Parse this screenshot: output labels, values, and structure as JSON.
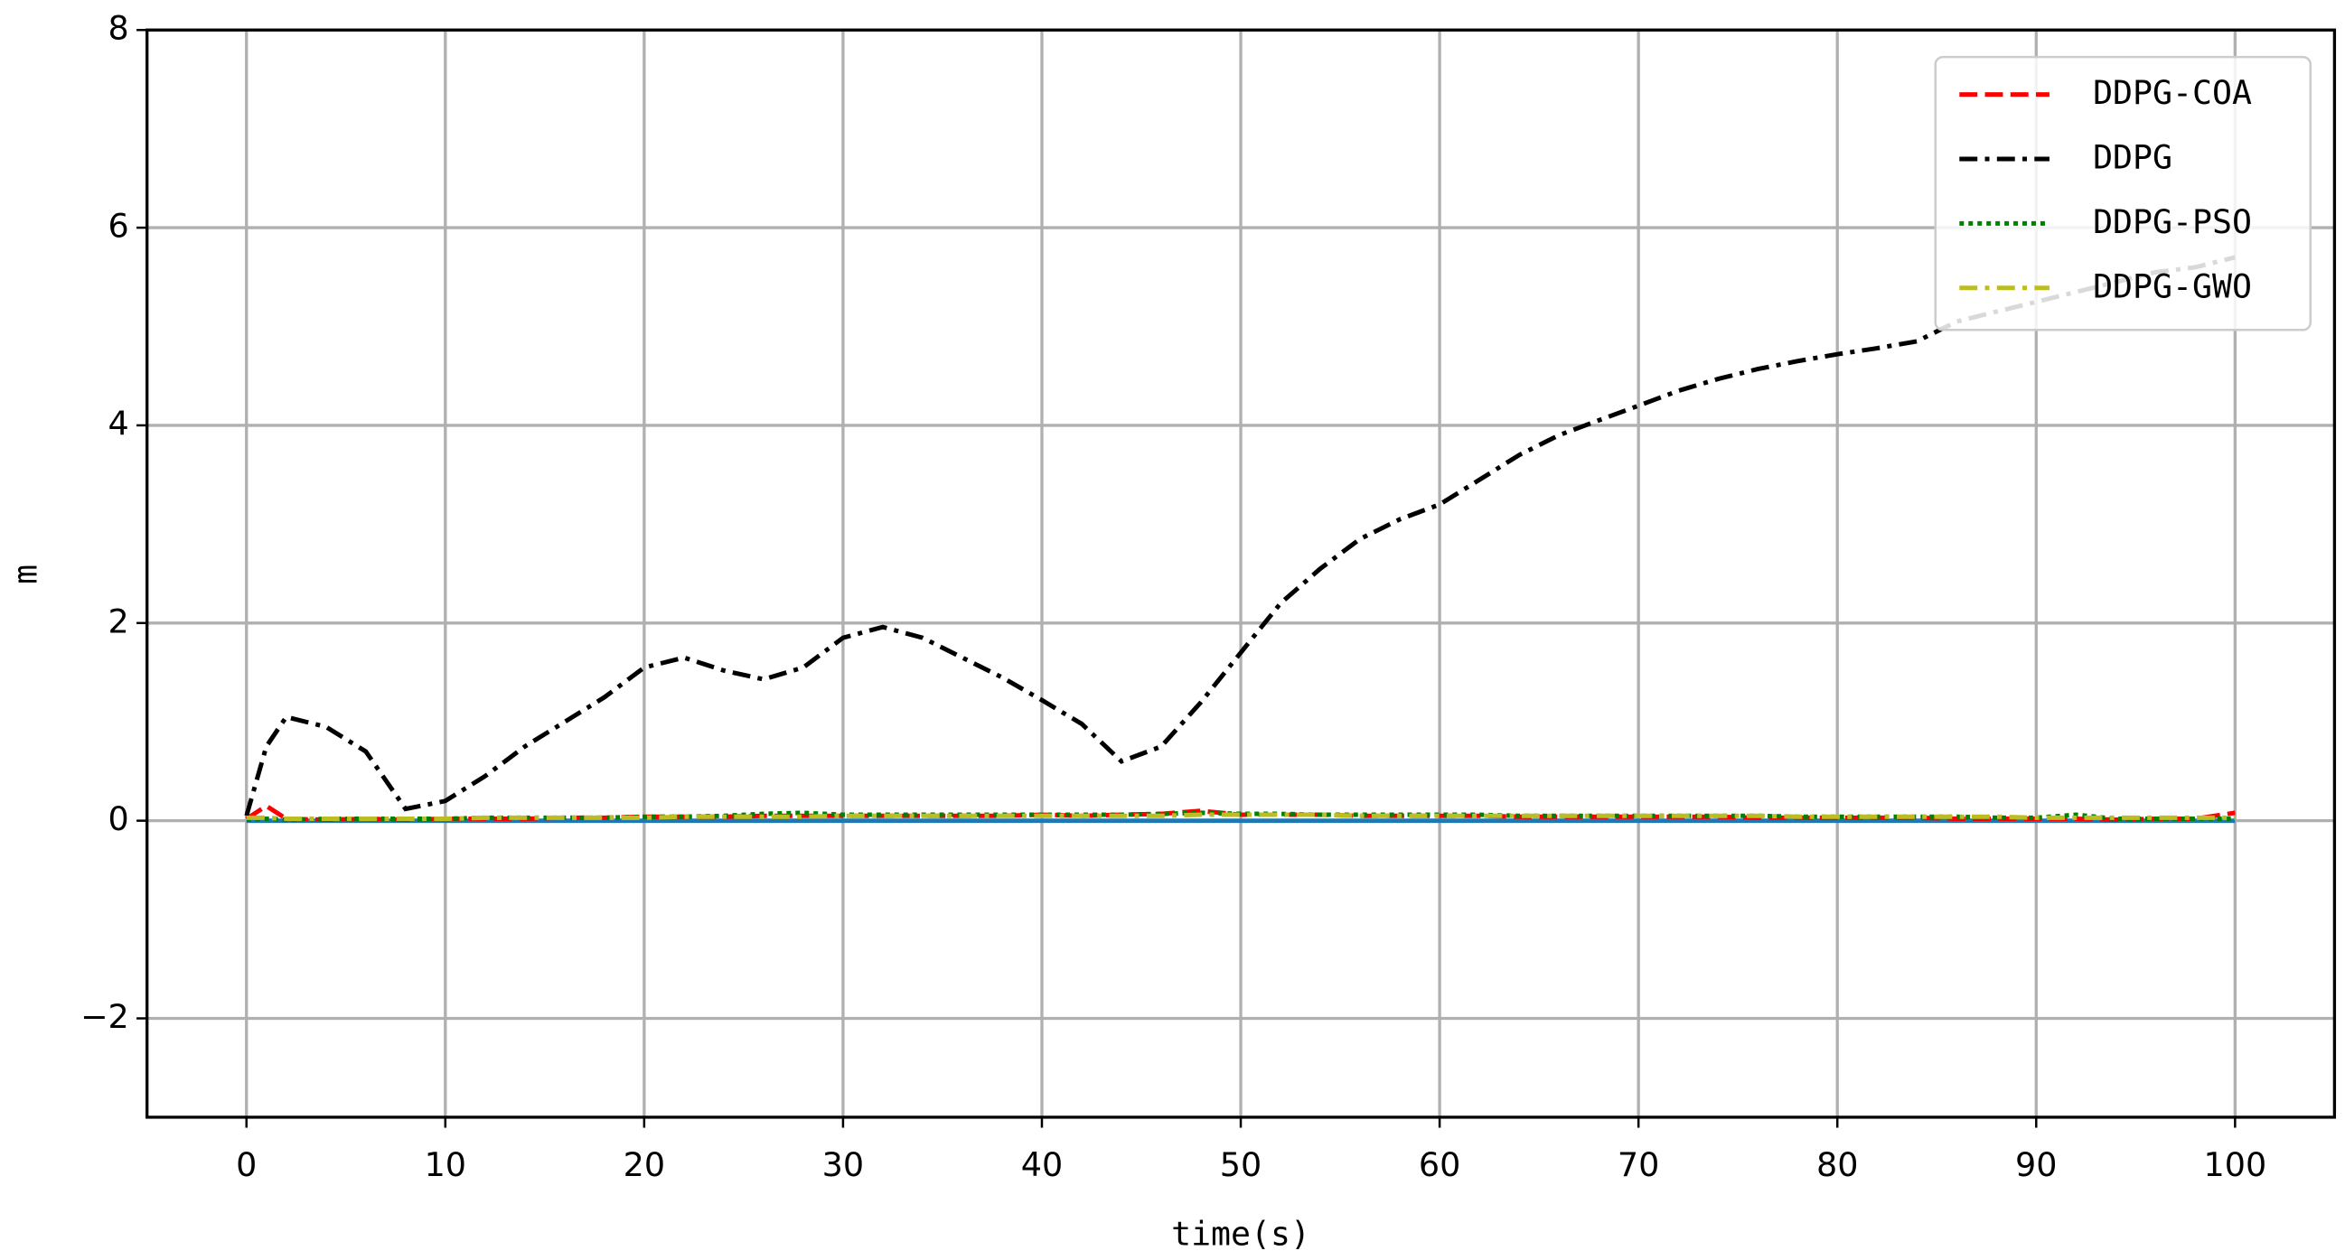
{
  "chart_data": {
    "type": "line",
    "x_label": "time(s)",
    "y_label": "m",
    "x": [
      0,
      1,
      2,
      4,
      6,
      8,
      10,
      12,
      14,
      16,
      18,
      20,
      22,
      24,
      26,
      28,
      30,
      32,
      34,
      36,
      38,
      40,
      42,
      44,
      46,
      48,
      50,
      52,
      54,
      56,
      58,
      60,
      62,
      64,
      66,
      68,
      70,
      72,
      74,
      76,
      78,
      80,
      82,
      84,
      86,
      88,
      90,
      92,
      94,
      96,
      98,
      100
    ],
    "series": [
      {
        "name": "DDPG-COA",
        "color": "#ff0000",
        "style": "dashed",
        "values": [
          0.02,
          0.15,
          0.02,
          0.01,
          0.02,
          0.01,
          0.02,
          0.02,
          0.02,
          0.03,
          0.03,
          0.04,
          0.04,
          0.04,
          0.05,
          0.05,
          0.05,
          0.05,
          0.05,
          0.05,
          0.05,
          0.06,
          0.05,
          0.06,
          0.07,
          0.1,
          0.06,
          0.06,
          0.06,
          0.05,
          0.05,
          0.05,
          0.05,
          0.04,
          0.04,
          0.04,
          0.04,
          0.04,
          0.04,
          0.03,
          0.03,
          0.03,
          0.03,
          0.03,
          0.02,
          0.02,
          0.02,
          0.02,
          0.01,
          0.02,
          0.02,
          0.08
        ]
      },
      {
        "name": "DDPG",
        "color": "#000000",
        "style": "dashdot",
        "values": [
          0.05,
          0.75,
          1.05,
          0.95,
          0.7,
          0.12,
          0.2,
          0.45,
          0.75,
          1.0,
          1.25,
          1.55,
          1.65,
          1.52,
          1.43,
          1.55,
          1.85,
          1.96,
          1.85,
          1.65,
          1.45,
          1.22,
          0.98,
          0.6,
          0.75,
          1.2,
          1.7,
          2.2,
          2.55,
          2.85,
          3.05,
          3.2,
          3.45,
          3.7,
          3.9,
          4.05,
          4.2,
          4.35,
          4.47,
          4.57,
          4.65,
          4.72,
          4.78,
          4.85,
          5.05,
          5.15,
          5.25,
          5.35,
          5.45,
          5.55,
          5.6,
          5.7
        ]
      },
      {
        "name": "DDPG-PSO",
        "color": "#008000",
        "style": "dotted",
        "values": [
          0.01,
          0.02,
          0.01,
          0.02,
          0.02,
          0.02,
          0.02,
          0.03,
          0.03,
          0.03,
          0.03,
          0.04,
          0.04,
          0.05,
          0.07,
          0.08,
          0.06,
          0.06,
          0.06,
          0.06,
          0.06,
          0.06,
          0.06,
          0.06,
          0.07,
          0.08,
          0.07,
          0.07,
          0.06,
          0.06,
          0.06,
          0.06,
          0.06,
          0.05,
          0.05,
          0.05,
          0.05,
          0.05,
          0.05,
          0.05,
          0.04,
          0.04,
          0.04,
          0.04,
          0.04,
          0.03,
          0.03,
          0.06,
          0.02,
          0.02,
          0.02,
          0.02
        ]
      },
      {
        "name": "DDPG-GWO",
        "color": "#bcbd22",
        "style": "dashdot",
        "values": [
          0.03,
          0.03,
          0.02,
          0.02,
          0.02,
          0.02,
          0.02,
          0.03,
          0.03,
          0.03,
          0.03,
          0.03,
          0.04,
          0.04,
          0.04,
          0.04,
          0.05,
          0.05,
          0.05,
          0.05,
          0.05,
          0.05,
          0.05,
          0.05,
          0.05,
          0.06,
          0.06,
          0.06,
          0.06,
          0.05,
          0.05,
          0.05,
          0.05,
          0.05,
          0.05,
          0.05,
          0.05,
          0.05,
          0.05,
          0.05,
          0.04,
          0.04,
          0.04,
          0.04,
          0.04,
          0.04,
          0.03,
          0.03,
          0.03,
          0.03,
          0.03,
          0.03
        ]
      },
      {
        "color": "#1f77b4",
        "style": "solid",
        "values": [
          0,
          0,
          0,
          0,
          0,
          0,
          0,
          0,
          0,
          0,
          0,
          0,
          0,
          0,
          0,
          0,
          0,
          0,
          0,
          0,
          0,
          0,
          0,
          0,
          0,
          0,
          0,
          0,
          0,
          0,
          0,
          0,
          0,
          0,
          0,
          0,
          0,
          0,
          0,
          0,
          0,
          0,
          0,
          0,
          0,
          0,
          0,
          0,
          0,
          0,
          0,
          0
        ]
      }
    ],
    "xlim": [
      -5,
      105
    ],
    "ylim": [
      -3,
      8
    ],
    "xticks": [
      0,
      10,
      20,
      30,
      40,
      50,
      60,
      70,
      80,
      90,
      100
    ],
    "yticks": [
      {
        "value": -2,
        "label": "−2"
      },
      0,
      2,
      4,
      6,
      8
    ],
    "grid": true,
    "legend": "upper right"
  }
}
